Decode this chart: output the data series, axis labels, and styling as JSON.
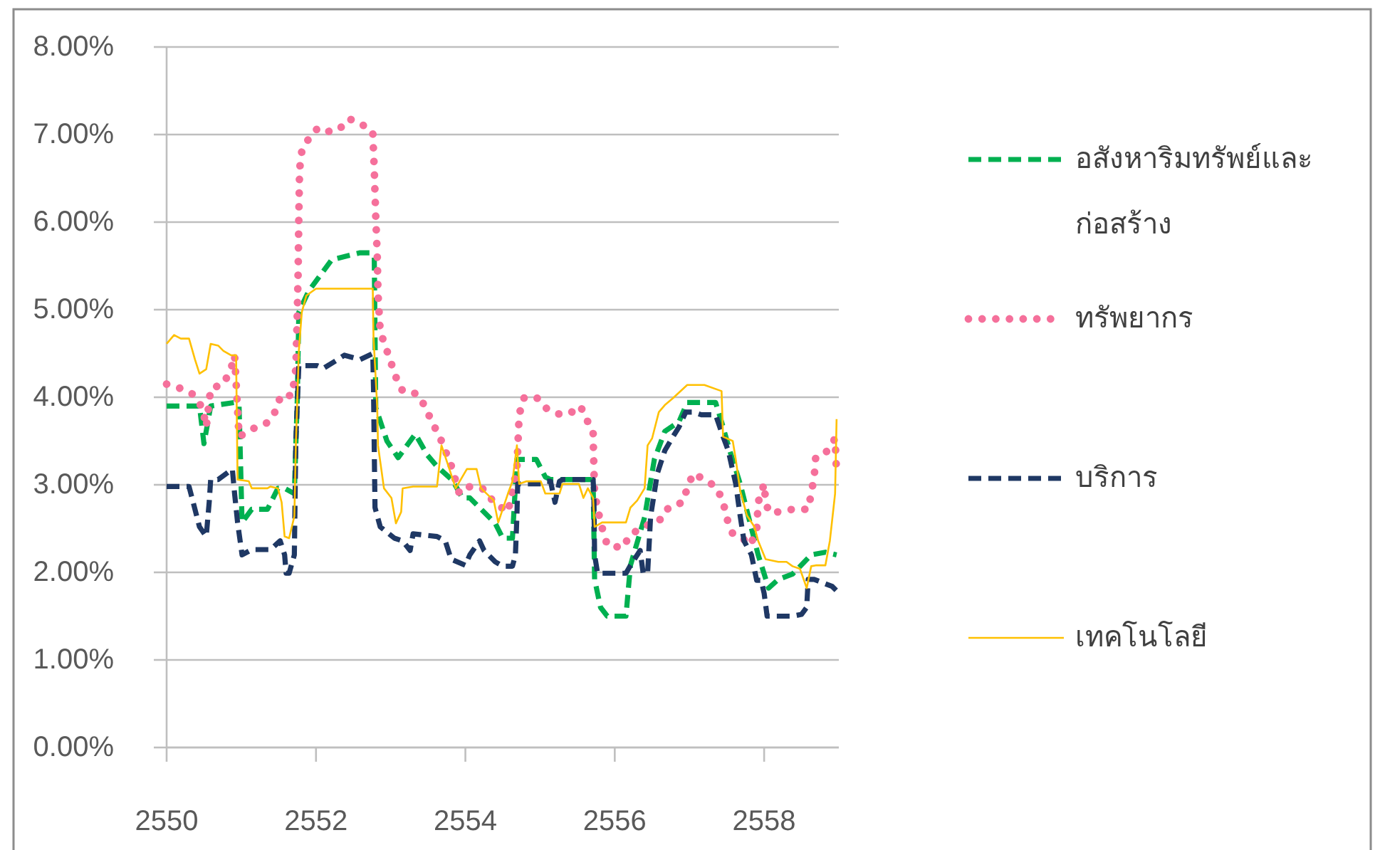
{
  "chart_data": {
    "type": "line",
    "xlim": [
      2550,
      2559
    ],
    "xticks": [
      2550,
      2552,
      2554,
      2556,
      2558
    ],
    "ylim": [
      0,
      8
    ],
    "yticks": [
      {
        "value": 0,
        "label": "0.00%"
      },
      {
        "value": 1,
        "label": "1.00%"
      },
      {
        "value": 2,
        "label": "2.00%"
      },
      {
        "value": 3,
        "label": "3.00%"
      },
      {
        "value": 4,
        "label": "4.00%"
      },
      {
        "value": 5,
        "label": "5.00%"
      },
      {
        "value": 6,
        "label": "6.00%"
      },
      {
        "value": 7,
        "label": "7.00%"
      },
      {
        "value": 8,
        "label": "8.00%"
      }
    ],
    "grid": "y",
    "legend": "right",
    "series": [
      {
        "name": "อสังหาริมทรัพย์และก่อสร้าง",
        "color": "#00b050",
        "line_style": "dashed",
        "x": [
          2550,
          2550.44,
          2550.5,
          2550.59,
          2550.91,
          2550.97,
          2551.01,
          2551.14,
          2551.35,
          2551.49,
          2551.58,
          2551.71,
          2551.75,
          2551.77,
          2551.9,
          2552.21,
          2552.59,
          2552.72,
          2552.78,
          2552.8,
          2552.95,
          2553.1,
          2553.33,
          2553.49,
          2553.62,
          2553.83,
          2553.96,
          2554.06,
          2554.4,
          2554.5,
          2554.63,
          2554.69,
          2554.95,
          2555.07,
          2555.14,
          2555.71,
          2555.73,
          2555.81,
          2555.9,
          2556.15,
          2556.21,
          2556.4,
          2556.53,
          2556.67,
          2556.86,
          2556.97,
          2557.35,
          2557.43,
          2557.54,
          2557.68,
          2557.81,
          2557.92,
          2558.06,
          2558.19,
          2558.38,
          2558.63,
          2558.82,
          2558.97
        ],
        "values": [
          3.9,
          3.9,
          3.47,
          3.9,
          3.94,
          3.9,
          2.57,
          2.72,
          2.72,
          2.96,
          2.96,
          2.9,
          4.0,
          4.97,
          5.21,
          5.57,
          5.65,
          5.65,
          5.6,
          3.88,
          3.5,
          3.31,
          3.58,
          3.34,
          3.21,
          3.05,
          2.85,
          2.85,
          2.56,
          2.39,
          2.39,
          3.29,
          3.29,
          3.09,
          3.06,
          3.06,
          1.92,
          1.6,
          1.5,
          1.5,
          2.08,
          2.63,
          3.29,
          3.61,
          3.72,
          3.94,
          3.94,
          3.72,
          3.39,
          3.01,
          2.57,
          2.2,
          1.82,
          1.92,
          1.98,
          2.2,
          2.23,
          2.2
        ]
      },
      {
        "name": "ทรัพยากร",
        "color": "#f5709b",
        "line_style": "dotted",
        "x": [
          2550,
          2550.19,
          2550.34,
          2550.48,
          2550.53,
          2550.59,
          2550.76,
          2550.86,
          2550.91,
          2550.97,
          2551.2,
          2551.35,
          2551.49,
          2551.52,
          2551.68,
          2551.73,
          2551.75,
          2551.76,
          2551.77,
          2551.78,
          2551.81,
          2551.9,
          2552.02,
          2552.11,
          2552.3,
          2552.44,
          2552.59,
          2552.76,
          2552.77,
          2552.78,
          2552.8,
          2552.82,
          2552.83,
          2552.86,
          2552.95,
          2553.07,
          2553.16,
          2553.35,
          2553.45,
          2553.52,
          2553.68,
          2553.81,
          2553.92,
          2554.06,
          2554.25,
          2554.38,
          2554.57,
          2554.69,
          2554.72,
          2554.78,
          2554.95,
          2555.07,
          2555.24,
          2555.39,
          2555.54,
          2555.62,
          2555.71,
          2555.72,
          2555.73,
          2555.81,
          2555.9,
          2556.11,
          2556.21,
          2556.34,
          2556.5,
          2556.63,
          2556.72,
          2556.91,
          2556.97,
          2557.05,
          2557.2,
          2557.35,
          2557.45,
          2557.49,
          2557.58,
          2557.71,
          2557.81,
          2557.9,
          2557.92,
          2558,
          2558.02,
          2558.06,
          2558.19,
          2558.38,
          2558.59,
          2558.63,
          2558.67,
          2558.69,
          2558.82,
          2558.95,
          2558.97
        ],
        "values": [
          4.15,
          4.1,
          4.04,
          3.88,
          3.66,
          4.1,
          4.15,
          4.32,
          4.48,
          3.55,
          3.66,
          3.71,
          3.88,
          4.02,
          4.02,
          4.32,
          4.97,
          5.4,
          6.06,
          6.6,
          6.81,
          6.95,
          7.07,
          7.03,
          7.05,
          7.18,
          7.13,
          7.03,
          6.81,
          6.6,
          6.06,
          5.62,
          5.18,
          4.75,
          4.53,
          4.23,
          4.07,
          4.04,
          3.91,
          3.78,
          3.5,
          3.22,
          2.9,
          2.98,
          2.95,
          2.8,
          2.69,
          3.18,
          3.8,
          3.99,
          4.0,
          3.88,
          3.81,
          3.81,
          3.9,
          3.75,
          3.61,
          3.22,
          2.9,
          2.57,
          2.31,
          2.28,
          2.44,
          2.49,
          2.57,
          2.61,
          2.74,
          2.8,
          2.96,
          3.13,
          3.06,
          2.98,
          2.82,
          2.64,
          2.44,
          2.39,
          2.31,
          2.47,
          2.8,
          3.01,
          2.82,
          2.69,
          2.69,
          2.72,
          2.72,
          2.9,
          3.09,
          3.31,
          3.36,
          3.53,
          3.13
        ]
      },
      {
        "name": "บริการ",
        "color": "#1f3864",
        "line_style": "dashed",
        "x": [
          2550,
          2550.3,
          2550.34,
          2550.44,
          2550.53,
          2550.57,
          2550.59,
          2550.69,
          2550.88,
          2550.91,
          2550.95,
          2551.01,
          2551.14,
          2551.39,
          2551.52,
          2551.58,
          2551.6,
          2551.64,
          2551.71,
          2551.73,
          2551.77,
          2552.02,
          2552.1,
          2552.29,
          2552.38,
          2552.59,
          2552.76,
          2552.77,
          2552.78,
          2552.79,
          2552.86,
          2553.05,
          2553.16,
          2553.26,
          2553.3,
          2553.62,
          2553.73,
          2553.81,
          2554,
          2554.06,
          2554.19,
          2554.25,
          2554.4,
          2554.5,
          2554.63,
          2554.67,
          2554.69,
          2554.7,
          2555.01,
          2555.07,
          2555.14,
          2555.2,
          2555.26,
          2555.3,
          2555.71,
          2555.72,
          2555.73,
          2555.77,
          2556.15,
          2556.21,
          2556.34,
          2556.38,
          2556.44,
          2556.48,
          2556.57,
          2556.67,
          2556.78,
          2556.86,
          2556.95,
          2557.05,
          2557.16,
          2557.35,
          2557.45,
          2557.52,
          2557.62,
          2557.68,
          2557.73,
          2557.83,
          2557.9,
          2557.96,
          2558,
          2558.04,
          2558.38,
          2558.5,
          2558.57,
          2558.59,
          2558.67,
          2558.91,
          2558.97
        ],
        "values": [
          2.98,
          2.98,
          2.85,
          2.52,
          2.41,
          2.8,
          3.06,
          3.06,
          3.18,
          2.9,
          2.57,
          2.2,
          2.26,
          2.26,
          2.36,
          2.2,
          1.99,
          1.99,
          2.2,
          3.5,
          4.36,
          4.36,
          4.33,
          4.43,
          4.48,
          4.43,
          4.5,
          4.1,
          3.4,
          2.74,
          2.52,
          2.39,
          2.36,
          2.25,
          2.44,
          2.41,
          2.36,
          2.15,
          2.08,
          2.2,
          2.36,
          2.25,
          2.12,
          2.07,
          2.07,
          2.2,
          2.64,
          3.01,
          3.01,
          3.04,
          3.04,
          2.8,
          3.04,
          3.06,
          3.06,
          2.9,
          2.2,
          1.99,
          1.99,
          2.08,
          2.25,
          1.99,
          1.99,
          2.64,
          3.13,
          3.39,
          3.55,
          3.66,
          3.83,
          3.83,
          3.8,
          3.8,
          3.55,
          3.39,
          3.01,
          2.64,
          2.36,
          2.2,
          1.91,
          1.91,
          1.76,
          1.5,
          1.5,
          1.52,
          1.6,
          1.92,
          1.92,
          1.84,
          1.79
        ]
      },
      {
        "name": "เทคโนโลยี",
        "color": "#ffc000",
        "line_style": "solid",
        "x": [
          2550,
          2550.1,
          2550.19,
          2550.3,
          2550.38,
          2550.44,
          2550.53,
          2550.59,
          2550.69,
          2550.76,
          2550.86,
          2550.93,
          2550.95,
          2551.1,
          2551.14,
          2551.35,
          2551.39,
          2551.49,
          2551.54,
          2551.58,
          2551.64,
          2551.71,
          2551.73,
          2551.77,
          2551.81,
          2551.87,
          2552,
          2552.76,
          2552.77,
          2552.82,
          2552.83,
          2552.91,
          2553.01,
          2553.07,
          2553.14,
          2553.16,
          2553.3,
          2553.62,
          2553.68,
          2553.77,
          2553.87,
          2554.02,
          2554.15,
          2554.21,
          2554.38,
          2554.44,
          2554.57,
          2554.63,
          2554.69,
          2554.72,
          2554.82,
          2555.01,
          2555.07,
          2555.26,
          2555.3,
          2555.52,
          2555.58,
          2555.64,
          2555.71,
          2555.73,
          2555.83,
          2556.15,
          2556.21,
          2556.3,
          2556.4,
          2556.44,
          2556.5,
          2556.59,
          2556.67,
          2556.78,
          2556.97,
          2557.2,
          2557.43,
          2557.45,
          2557.58,
          2557.62,
          2557.68,
          2557.77,
          2557.87,
          2557.92,
          2558.02,
          2558.19,
          2558.3,
          2558.38,
          2558.48,
          2558.57,
          2558.63,
          2558.69,
          2558.82,
          2558.88,
          2558.95,
          2558.97
        ],
        "values": [
          4.61,
          4.71,
          4.67,
          4.67,
          4.43,
          4.27,
          4.32,
          4.61,
          4.59,
          4.53,
          4.48,
          4.48,
          3.06,
          3.04,
          2.96,
          2.96,
          2.98,
          2.96,
          2.8,
          2.41,
          2.39,
          2.64,
          3.45,
          4.53,
          4.97,
          5.16,
          5.24,
          5.24,
          4.69,
          3.88,
          3.45,
          2.96,
          2.85,
          2.56,
          2.69,
          2.96,
          2.98,
          2.98,
          3.45,
          3.22,
          2.96,
          3.18,
          3.18,
          2.96,
          2.82,
          2.57,
          2.9,
          3.04,
          3.45,
          3.01,
          3.04,
          3.04,
          2.9,
          2.9,
          3.01,
          3.01,
          2.85,
          2.96,
          2.85,
          2.52,
          2.57,
          2.57,
          2.74,
          2.82,
          2.96,
          3.45,
          3.53,
          3.83,
          3.91,
          3.99,
          4.14,
          4.14,
          4.07,
          3.55,
          3.5,
          3.29,
          2.93,
          2.65,
          2.52,
          2.36,
          2.15,
          2.12,
          2.12,
          2.07,
          2.04,
          1.82,
          2.07,
          2.08,
          2.08,
          2.36,
          2.9,
          3.75
        ]
      }
    ]
  }
}
